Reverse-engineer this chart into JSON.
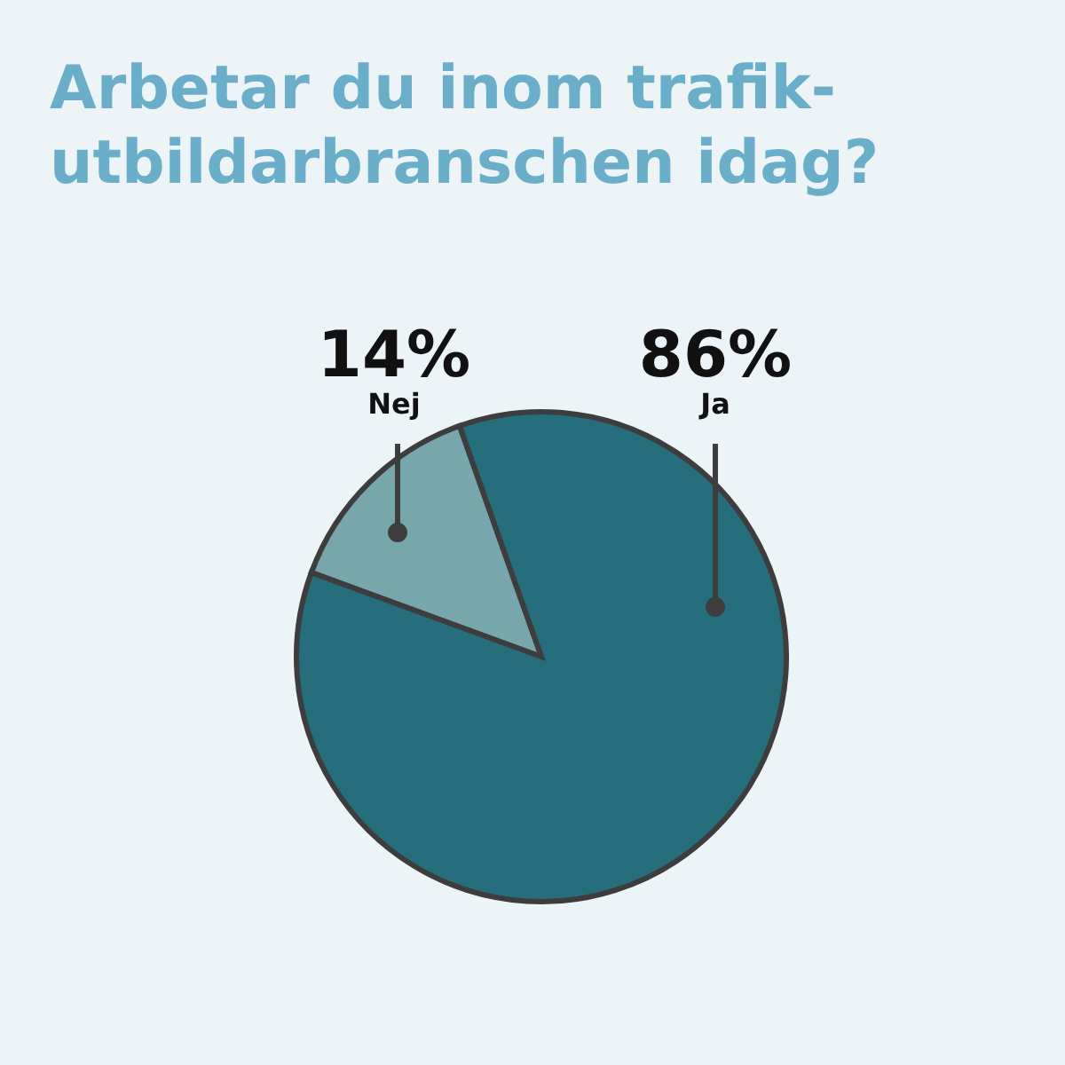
{
  "chart_data": {
    "type": "pie",
    "title": "Arbetar du inom trafik-utbildarbranschen idag?",
    "categories": [
      "Nej",
      "Ja"
    ],
    "values": [
      14,
      86
    ],
    "colors": [
      "#77a6ad",
      "#266e7b"
    ],
    "value_labels": [
      "14%",
      "86%"
    ],
    "legend": false
  }
}
